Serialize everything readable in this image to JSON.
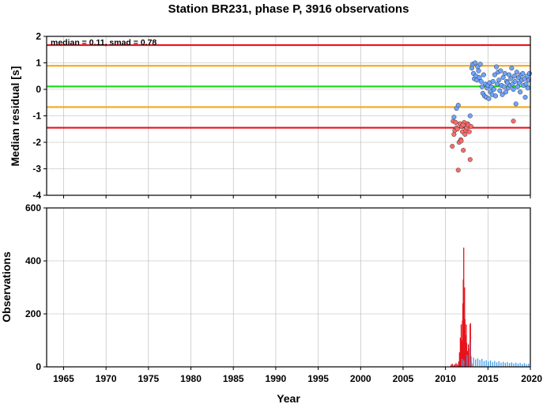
{
  "chart_data": {
    "title": "Station BR231, phase P, 3916 observations",
    "xlabel": "Year",
    "x_ticks": [
      1965,
      1970,
      1975,
      1980,
      1985,
      1990,
      1995,
      2000,
      2005,
      2010,
      2015,
      2020
    ],
    "xlim": [
      1963,
      2020
    ],
    "grid": true,
    "panels": [
      {
        "type": "scatter",
        "ylabel": "Median residual [s]",
        "ylim": [
          -4,
          2
        ],
        "y_ticks": [
          -4,
          -3,
          -2,
          -1,
          0,
          1,
          2
        ],
        "annotation": "median = 0.11, smad = 0.78",
        "reference_lines": [
          {
            "y": 1.67,
            "color": "#e8131b"
          },
          {
            "y": 0.89,
            "color": "#f2a81d"
          },
          {
            "y": 0.11,
            "color": "#18dd18"
          },
          {
            "y": -0.67,
            "color": "#f2a81d"
          },
          {
            "y": -1.45,
            "color": "#e8131b"
          }
        ],
        "series": [
          {
            "color": "#ff6b6b",
            "points": [
              [
                2010.8,
                -2.15
              ],
              [
                2010.9,
                -1.2
              ],
              [
                2011.0,
                -1.7
              ],
              [
                2011.1,
                -1.55
              ],
              [
                2011.2,
                -1.25
              ],
              [
                2011.3,
                -1.45
              ],
              [
                2011.4,
                -1.5
              ],
              [
                2011.5,
                -3.05
              ],
              [
                2011.6,
                -2.0
              ],
              [
                2011.7,
                -1.3
              ],
              [
                2011.8,
                -1.9
              ],
              [
                2011.9,
                -1.4
              ],
              [
                2012.0,
                -1.6
              ],
              [
                2012.1,
                -2.3
              ],
              [
                2012.2,
                -1.25
              ],
              [
                2012.3,
                -1.7
              ],
              [
                2012.4,
                -1.55
              ],
              [
                2012.5,
                -1.45
              ],
              [
                2012.6,
                -1.3
              ],
              [
                2012.7,
                -1.35
              ],
              [
                2012.8,
                -1.6
              ],
              [
                2012.9,
                -2.65
              ],
              [
                2013.0,
                -1.4
              ],
              [
                2011.85,
                -1.95
              ],
              [
                2012.05,
                -1.35
              ],
              [
                2018.0,
                -1.2
              ]
            ]
          },
          {
            "color": "#6ea4ff",
            "points": [
              [
                2011.0,
                -1.05
              ],
              [
                2011.3,
                -0.72
              ],
              [
                2011.5,
                -0.6
              ],
              [
                2012.9,
                -1.0
              ],
              [
                2013.1,
                0.8
              ],
              [
                2013.2,
                0.95
              ],
              [
                2013.3,
                0.6
              ],
              [
                2013.4,
                0.4
              ],
              [
                2013.5,
                1.0
              ],
              [
                2013.6,
                0.5
              ],
              [
                2013.7,
                0.35
              ],
              [
                2013.8,
                0.85
              ],
              [
                2013.9,
                0.7
              ],
              [
                2014.0,
                0.45
              ],
              [
                2014.1,
                0.95
              ],
              [
                2014.2,
                0.3
              ],
              [
                2014.3,
                0.1
              ],
              [
                2014.4,
                -0.15
              ],
              [
                2014.5,
                0.55
              ],
              [
                2014.6,
                -0.25
              ],
              [
                2014.7,
                0.2
              ],
              [
                2014.8,
                -0.3
              ],
              [
                2014.9,
                0.05
              ],
              [
                2015.0,
                0.15
              ],
              [
                2015.1,
                -0.35
              ],
              [
                2015.2,
                0.25
              ],
              [
                2015.3,
                -0.1
              ],
              [
                2015.4,
                0.1
              ],
              [
                2015.5,
                -0.2
              ],
              [
                2015.6,
                0.3
              ],
              [
                2015.7,
                0.0
              ],
              [
                2015.8,
                0.55
              ],
              [
                2015.9,
                -0.25
              ],
              [
                2016.0,
                0.85
              ],
              [
                2016.1,
                0.2
              ],
              [
                2016.2,
                0.65
              ],
              [
                2016.3,
                0.35
              ],
              [
                2016.4,
                -0.05
              ],
              [
                2016.5,
                0.7
              ],
              [
                2016.6,
                0.15
              ],
              [
                2016.7,
                -0.2
              ],
              [
                2016.8,
                0.45
              ],
              [
                2016.9,
                0.1
              ],
              [
                2017.0,
                0.6
              ],
              [
                2017.1,
                -0.1
              ],
              [
                2017.2,
                0.3
              ],
              [
                2017.3,
                0.25
              ],
              [
                2017.4,
                0.05
              ],
              [
                2017.5,
                0.55
              ],
              [
                2017.6,
                0.15
              ],
              [
                2017.7,
                0.4
              ],
              [
                2017.8,
                0.8
              ],
              [
                2017.9,
                0.2
              ],
              [
                2018.0,
                0.0
              ],
              [
                2018.1,
                0.5
              ],
              [
                2018.2,
                0.3
              ],
              [
                2018.3,
                -0.55
              ],
              [
                2018.4,
                0.65
              ],
              [
                2018.5,
                0.1
              ],
              [
                2018.6,
                0.45
              ],
              [
                2018.7,
                0.25
              ],
              [
                2018.8,
                -0.1
              ],
              [
                2018.9,
                0.55
              ],
              [
                2019.0,
                0.35
              ],
              [
                2019.1,
                0.6
              ],
              [
                2019.2,
                0.15
              ],
              [
                2019.3,
                0.4
              ],
              [
                2019.4,
                -0.3
              ],
              [
                2019.5,
                0.2
              ],
              [
                2019.6,
                0.5
              ],
              [
                2019.7,
                0.05
              ],
              [
                2019.8,
                0.35
              ],
              [
                2019.9,
                0.6
              ]
            ]
          }
        ]
      },
      {
        "type": "bar",
        "ylabel": "Observations",
        "ylim": [
          0,
          600
        ],
        "y_ticks": [
          0,
          200,
          400,
          600
        ],
        "series": [
          {
            "color": "#e8131b",
            "bins": [
              [
                2010.65,
                8
              ],
              [
                2010.8,
                12
              ],
              [
                2010.95,
                6
              ],
              [
                2011.1,
                10
              ],
              [
                2011.25,
                14
              ],
              [
                2011.4,
                9
              ],
              [
                2011.55,
                20
              ],
              [
                2011.65,
                55
              ],
              [
                2011.75,
                110
              ],
              [
                2011.85,
                160
              ],
              [
                2011.95,
                100
              ],
              [
                2012.0,
                175
              ],
              [
                2012.05,
                240
              ],
              [
                2012.1,
                330
              ],
              [
                2012.15,
                450
              ],
              [
                2012.2,
                160
              ],
              [
                2012.25,
                300
              ],
              [
                2012.3,
                180
              ],
              [
                2012.35,
                120
              ],
              [
                2012.45,
                160
              ],
              [
                2012.5,
                90
              ],
              [
                2012.6,
                60
              ],
              [
                2012.7,
                85
              ],
              [
                2012.8,
                70
              ],
              [
                2012.9,
                160
              ],
              [
                2012.95,
                165
              ],
              [
                2013.0,
                40
              ],
              [
                2013.1,
                12
              ]
            ]
          },
          {
            "color": "#3f9ff0",
            "bins": [
              [
                2011.95,
                30
              ],
              [
                2012.15,
                25
              ],
              [
                2012.55,
                45
              ],
              [
                2012.85,
                95
              ],
              [
                2013.05,
                20
              ],
              [
                2013.3,
                35
              ],
              [
                2013.55,
                28
              ],
              [
                2013.8,
                32
              ],
              [
                2014.05,
                26
              ],
              [
                2014.3,
                30
              ],
              [
                2014.55,
                22
              ],
              [
                2014.8,
                25
              ],
              [
                2015.05,
                20
              ],
              [
                2015.3,
                24
              ],
              [
                2015.55,
                18
              ],
              [
                2015.8,
                22
              ],
              [
                2016.05,
                17
              ],
              [
                2016.3,
                21
              ],
              [
                2016.55,
                16
              ],
              [
                2016.8,
                19
              ],
              [
                2017.05,
                15
              ],
              [
                2017.3,
                18
              ],
              [
                2017.55,
                14
              ],
              [
                2017.8,
                17
              ],
              [
                2018.05,
                13
              ],
              [
                2018.3,
                16
              ],
              [
                2018.55,
                12
              ],
              [
                2018.8,
                15
              ],
              [
                2019.05,
                11
              ],
              [
                2019.3,
                14
              ],
              [
                2019.55,
                10
              ],
              [
                2019.8,
                12
              ]
            ]
          }
        ]
      }
    ]
  }
}
